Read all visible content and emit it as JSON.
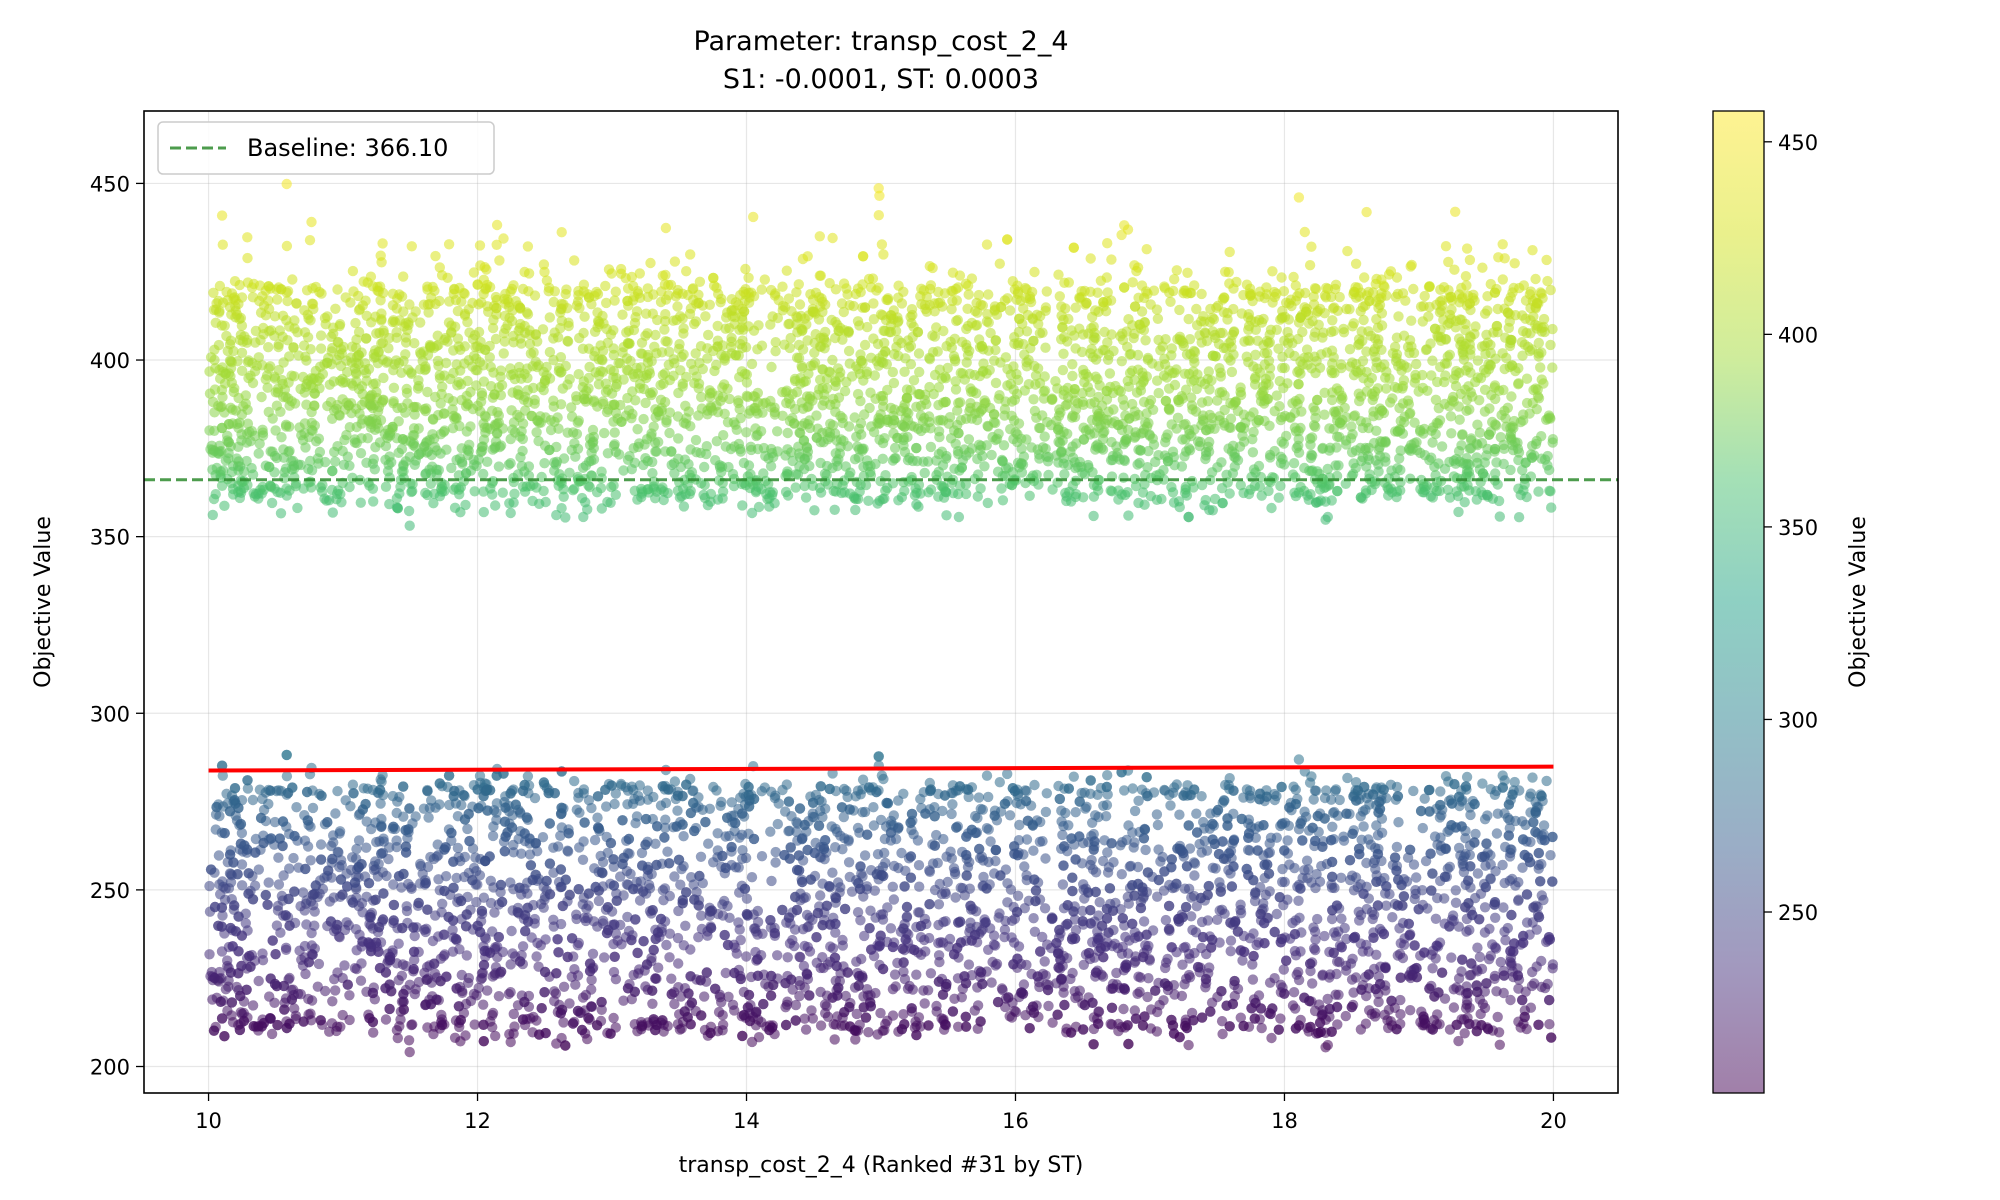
{
  "chart_data": {
    "type": "scatter",
    "title": "Parameter: transp_cost_2_4",
    "subtitle": "S1: -0.0001, ST: 0.0003",
    "xlabel": "transp_cost_2_4 (Ranked #31 by ST)",
    "ylabel": "Objective Value",
    "xlim": [
      9.52,
      20.48
    ],
    "ylim": [
      192.5,
      470.5
    ],
    "xticks": [
      10,
      12,
      14,
      16,
      18,
      20
    ],
    "yticks": [
      200,
      250,
      300,
      350,
      400,
      450
    ],
    "grid": true,
    "legend_position": "top-left",
    "baseline": {
      "label": "Baseline: 366.10",
      "value": 366.1,
      "color": "#2e8b2e"
    },
    "trend_line": {
      "color": "#ff0000",
      "x": [
        10,
        20
      ],
      "y": [
        283.8,
        284.9
      ]
    },
    "clusters": [
      {
        "x_range": [
          10,
          20
        ],
        "y_range": [
          363,
          420
        ],
        "outliers_y_range": [
          353,
          458
        ]
      },
      {
        "x_range": [
          10,
          20
        ],
        "y_range": [
          212,
          278
        ],
        "outliers_y_range": [
          204,
          291
        ]
      }
    ],
    "colormap": "viridis",
    "colorbar": {
      "label": "Objective Value",
      "range": [
        203,
        458
      ],
      "ticks": [
        250,
        300,
        350,
        400,
        450
      ]
    },
    "colors": {
      "viridis_low": "#440154",
      "viridis_high": "#fde725"
    }
  }
}
